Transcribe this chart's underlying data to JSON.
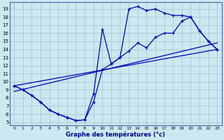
{
  "xlabel": "Graphe des températures (°c)",
  "background_color": "#cce8f0",
  "grid_color": "#a8ccd8",
  "line_color": "#0000bb",
  "xlim_min": -0.5,
  "xlim_max": 23.5,
  "ylim_min": 4.6,
  "ylim_max": 19.8,
  "xticks": [
    0,
    1,
    2,
    3,
    4,
    5,
    6,
    7,
    8,
    9,
    10,
    11,
    12,
    13,
    14,
    15,
    16,
    17,
    18,
    19,
    20,
    21,
    22,
    23
  ],
  "yticks": [
    5,
    6,
    7,
    8,
    9,
    10,
    11,
    12,
    13,
    14,
    15,
    16,
    17,
    18,
    19
  ],
  "curve_upper_x": [
    0,
    1,
    2,
    3,
    4,
    5,
    6,
    7,
    8,
    9,
    10,
    11,
    12,
    13,
    14,
    15,
    16,
    17,
    18,
    19,
    20,
    21,
    22,
    23
  ],
  "curve_upper_y": [
    9.5,
    9.0,
    8.3,
    7.5,
    6.5,
    6.0,
    5.6,
    5.2,
    5.3,
    8.5,
    16.5,
    12.2,
    13.0,
    19.0,
    19.3,
    18.8,
    19.0,
    18.5,
    18.2,
    18.2,
    18.0,
    16.3,
    15.0,
    14.0
  ],
  "curve_lower_x": [
    0,
    1,
    2,
    3,
    4,
    5,
    6,
    7,
    8,
    9,
    10,
    11,
    12,
    13,
    14,
    15,
    16,
    17,
    18,
    19,
    20,
    21,
    22,
    23
  ],
  "curve_lower_y": [
    9.5,
    9.0,
    8.3,
    7.5,
    6.5,
    6.0,
    5.6,
    5.2,
    5.3,
    7.5,
    11.5,
    12.2,
    13.0,
    13.8,
    14.8,
    14.2,
    15.5,
    16.0,
    16.0,
    17.5,
    18.0,
    16.3,
    15.0,
    14.0
  ],
  "trend1_x": [
    0,
    23
  ],
  "trend1_y": [
    9.5,
    14.0
  ],
  "trend2_x": [
    0,
    23
  ],
  "trend2_y": [
    8.8,
    14.8
  ]
}
